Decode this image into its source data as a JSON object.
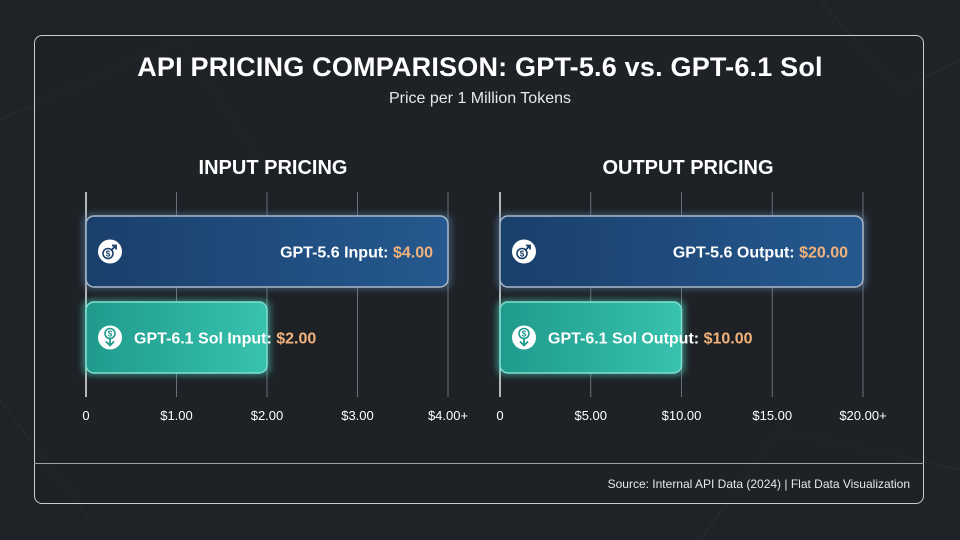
{
  "title": "API PRICING COMPARISON: GPT-5.6 vs. GPT-6.1 Sol",
  "subtitle": "Price per 1 Million Tokens",
  "source": "Source: Internal API Data (2024) | Flat Data Visualization",
  "colors": {
    "background": "#1f2328",
    "bar_old": "#1f4e82",
    "bar_new": "#2bb3a0",
    "value_highlight": "#f2b27a",
    "grid": "#6b7178"
  },
  "chart_data": [
    {
      "type": "bar",
      "orientation": "horizontal",
      "title": "INPUT PRICING",
      "categories": [
        "GPT-5.6 Input:",
        "GPT-6.1 Sol Input:"
      ],
      "values": [
        4.0,
        2.0
      ],
      "value_labels": [
        "$4.00",
        "$2.00"
      ],
      "icons": [
        "dollar-up-arrow-icon",
        "dollar-down-arrow-icon"
      ],
      "xlim": [
        0,
        4
      ],
      "ticks": [
        0,
        1,
        2,
        3,
        4
      ],
      "tick_labels": [
        "0",
        "$1.00",
        "$2.00",
        "$3.00",
        "$4.00+"
      ],
      "grid": true
    },
    {
      "type": "bar",
      "orientation": "horizontal",
      "title": "OUTPUT PRICING",
      "categories": [
        "GPT-5.6 Output:",
        "GPT-6.1 Sol Output:"
      ],
      "values": [
        20.0,
        10.0
      ],
      "value_labels": [
        "$20.00",
        "$10.00"
      ],
      "icons": [
        "dollar-up-arrow-icon",
        "dollar-down-arrow-icon"
      ],
      "xlim": [
        0,
        20
      ],
      "ticks": [
        0,
        5,
        10,
        15,
        20
      ],
      "tick_labels": [
        "0",
        "$5.00",
        "$10.00",
        "$15.00",
        "$20.00+"
      ],
      "grid": true
    }
  ]
}
